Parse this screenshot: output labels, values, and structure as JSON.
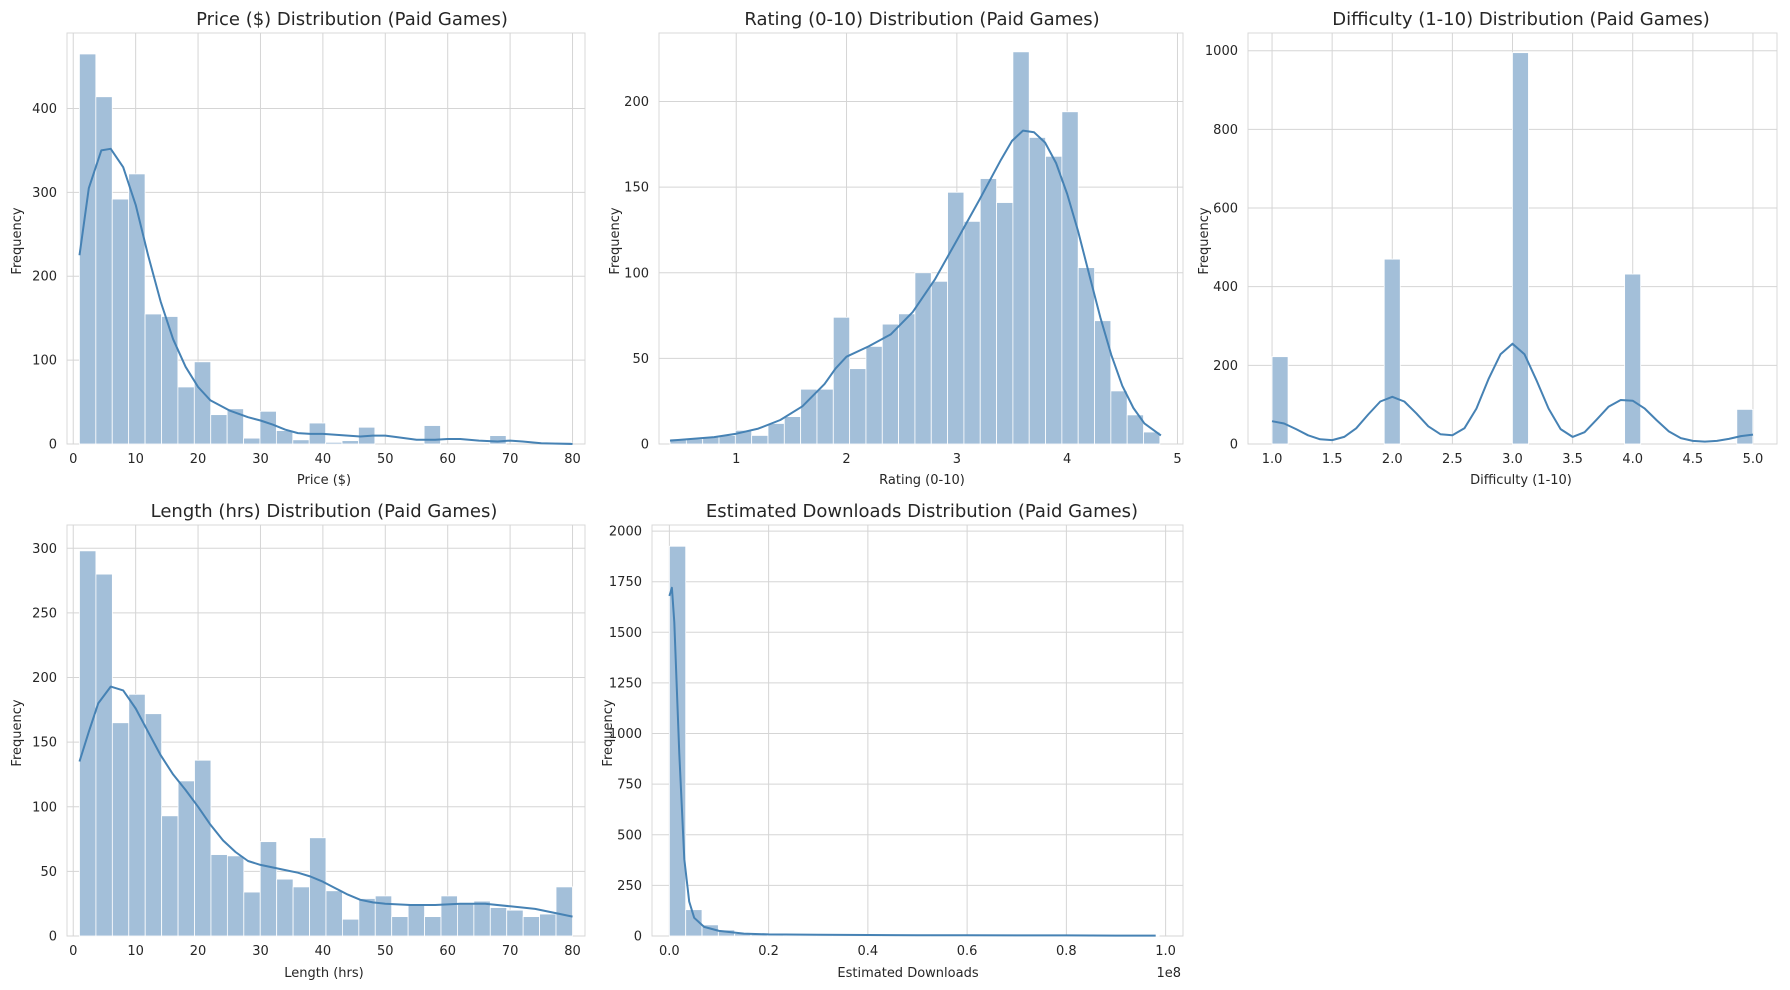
{
  "colors": {
    "bar": "#a3bfd9",
    "bar_edge": "#ffffff",
    "kde": "#4682b4",
    "grid": "#d5d5d5",
    "frame": "#d9d9d9"
  },
  "chart_data": [
    {
      "type": "bar",
      "title": "Price ($) Distribution (Paid Games)",
      "xlabel": "Price ($)",
      "ylabel": "Frequency",
      "xlim": [
        -1,
        82
      ],
      "ylim": [
        0,
        490
      ],
      "xticks": [
        0,
        10,
        20,
        30,
        40,
        50,
        60,
        70,
        80
      ],
      "xtick_labels": [
        "0",
        "10",
        "20",
        "30",
        "40",
        "50",
        "60",
        "70",
        "80"
      ],
      "yticks": [
        0,
        100,
        200,
        300,
        400
      ],
      "bin_start": 0.99,
      "bin_width": 2.63,
      "values": [
        465,
        414,
        292,
        322,
        155,
        152,
        68,
        98,
        35,
        42,
        7,
        39,
        16,
        5,
        25,
        2,
        4,
        20,
        0,
        0,
        0,
        22,
        0,
        0,
        0,
        10,
        0,
        0,
        0,
        2
      ],
      "kde": [
        [
          1,
          225
        ],
        [
          2.5,
          305
        ],
        [
          4.5,
          350
        ],
        [
          6,
          352
        ],
        [
          8,
          330
        ],
        [
          10,
          285
        ],
        [
          12,
          225
        ],
        [
          14,
          170
        ],
        [
          16,
          125
        ],
        [
          18,
          92
        ],
        [
          20,
          68
        ],
        [
          22,
          52
        ],
        [
          25,
          40
        ],
        [
          28,
          32
        ],
        [
          30,
          28
        ],
        [
          32,
          23
        ],
        [
          34,
          17
        ],
        [
          36,
          13
        ],
        [
          38,
          12
        ],
        [
          40,
          12
        ],
        [
          42,
          11
        ],
        [
          44,
          10
        ],
        [
          46,
          9
        ],
        [
          48,
          10
        ],
        [
          50,
          10
        ],
        [
          52,
          8
        ],
        [
          55,
          5
        ],
        [
          58,
          5
        ],
        [
          60,
          6
        ],
        [
          62,
          6
        ],
        [
          65,
          4
        ],
        [
          68,
          3
        ],
        [
          70,
          4
        ],
        [
          72,
          3
        ],
        [
          75,
          1
        ],
        [
          80,
          0
        ]
      ]
    },
    {
      "type": "bar",
      "title": "Rating (0-10) Distribution (Paid Games)",
      "xlabel": "Rating (0-10)",
      "ylabel": "Frequency",
      "xlim": [
        0.3,
        5.05
      ],
      "ylim": [
        0,
        240
      ],
      "xticks": [
        1,
        2,
        3,
        4,
        5
      ],
      "xtick_labels": [
        "1",
        "2",
        "3",
        "4",
        "5"
      ],
      "yticks": [
        0,
        50,
        100,
        150,
        200
      ],
      "bin_start": 0.4,
      "bin_width": 0.148,
      "values": [
        3,
        3,
        4,
        5,
        8,
        5,
        12,
        16,
        32,
        32,
        74,
        44,
        57,
        70,
        76,
        100,
        95,
        147,
        130,
        155,
        141,
        229,
        179,
        168,
        194,
        103,
        72,
        31,
        17,
        7
      ],
      "kde": [
        [
          0.4,
          2
        ],
        [
          0.6,
          3
        ],
        [
          0.8,
          4
        ],
        [
          1.0,
          6
        ],
        [
          1.2,
          9
        ],
        [
          1.4,
          14
        ],
        [
          1.6,
          22
        ],
        [
          1.8,
          35
        ],
        [
          1.9,
          44
        ],
        [
          2.0,
          51
        ],
        [
          2.2,
          57
        ],
        [
          2.4,
          64
        ],
        [
          2.6,
          77
        ],
        [
          2.8,
          96
        ],
        [
          3.0,
          119
        ],
        [
          3.2,
          142
        ],
        [
          3.4,
          166
        ],
        [
          3.5,
          177
        ],
        [
          3.6,
          183
        ],
        [
          3.7,
          182
        ],
        [
          3.8,
          176
        ],
        [
          3.9,
          164
        ],
        [
          4.0,
          146
        ],
        [
          4.1,
          124
        ],
        [
          4.2,
          99
        ],
        [
          4.3,
          74
        ],
        [
          4.4,
          52
        ],
        [
          4.5,
          34
        ],
        [
          4.6,
          21
        ],
        [
          4.7,
          12
        ],
        [
          4.85,
          5
        ]
      ]
    },
    {
      "type": "bar",
      "title": "Difficulty (1-10) Distribution (Paid Games)",
      "xlabel": "Difficulty (1-10)",
      "ylabel": "Frequency",
      "xlim": [
        0.8,
        5.2
      ],
      "ylim": [
        0,
        1045
      ],
      "xticks": [
        1.0,
        1.5,
        2.0,
        2.5,
        3.0,
        3.5,
        4.0,
        4.5,
        5.0
      ],
      "xtick_labels": [
        "1.0",
        "1.5",
        "2.0",
        "2.5",
        "3.0",
        "3.5",
        "4.0",
        "4.5",
        "5.0"
      ],
      "yticks": [
        0,
        200,
        400,
        600,
        800,
        1000
      ],
      "bin_start": 1.0,
      "bin_width": 0.1333,
      "values": [
        222,
        0,
        0,
        0,
        0,
        0,
        0,
        470,
        0,
        0,
        0,
        0,
        0,
        0,
        0,
        995,
        0,
        0,
        0,
        0,
        0,
        0,
        432,
        0,
        0,
        0,
        0,
        0,
        0,
        88
      ],
      "kde": [
        [
          1.0,
          58
        ],
        [
          1.1,
          52
        ],
        [
          1.2,
          38
        ],
        [
          1.3,
          22
        ],
        [
          1.4,
          12
        ],
        [
          1.5,
          10
        ],
        [
          1.6,
          18
        ],
        [
          1.7,
          40
        ],
        [
          1.8,
          75
        ],
        [
          1.9,
          108
        ],
        [
          2.0,
          120
        ],
        [
          2.1,
          108
        ],
        [
          2.2,
          78
        ],
        [
          2.3,
          45
        ],
        [
          2.4,
          25
        ],
        [
          2.5,
          22
        ],
        [
          2.6,
          40
        ],
        [
          2.7,
          90
        ],
        [
          2.8,
          165
        ],
        [
          2.9,
          228
        ],
        [
          3.0,
          255
        ],
        [
          3.1,
          228
        ],
        [
          3.2,
          162
        ],
        [
          3.3,
          90
        ],
        [
          3.4,
          38
        ],
        [
          3.5,
          18
        ],
        [
          3.6,
          30
        ],
        [
          3.7,
          62
        ],
        [
          3.8,
          95
        ],
        [
          3.9,
          112
        ],
        [
          4.0,
          110
        ],
        [
          4.1,
          90
        ],
        [
          4.2,
          60
        ],
        [
          4.3,
          32
        ],
        [
          4.4,
          15
        ],
        [
          4.5,
          8
        ],
        [
          4.6,
          6
        ],
        [
          4.7,
          8
        ],
        [
          4.8,
          13
        ],
        [
          4.9,
          20
        ],
        [
          5.0,
          24
        ]
      ]
    },
    {
      "type": "bar",
      "title": "Length (hrs) Distribution (Paid Games)",
      "xlabel": "Length (hrs)",
      "ylabel": "Frequency",
      "xlim": [
        -1,
        82
      ],
      "ylim": [
        0,
        318
      ],
      "xticks": [
        0,
        10,
        20,
        30,
        40,
        50,
        60,
        70,
        80
      ],
      "xtick_labels": [
        "0",
        "10",
        "20",
        "30",
        "40",
        "50",
        "60",
        "70",
        "80"
      ],
      "yticks": [
        0,
        50,
        100,
        150,
        200,
        250,
        300
      ],
      "bin_start": 1.0,
      "bin_width": 2.633,
      "values": [
        298,
        280,
        165,
        187,
        172,
        93,
        120,
        136,
        63,
        62,
        34,
        73,
        44,
        38,
        76,
        35,
        13,
        29,
        31,
        15,
        25,
        15,
        31,
        25,
        27,
        22,
        20,
        15,
        17,
        38
      ],
      "kde": [
        [
          1,
          135
        ],
        [
          2.5,
          158
        ],
        [
          4,
          180
        ],
        [
          6,
          193
        ],
        [
          8,
          190
        ],
        [
          10,
          176
        ],
        [
          12,
          158
        ],
        [
          14,
          140
        ],
        [
          16,
          125
        ],
        [
          18,
          113
        ],
        [
          20,
          100
        ],
        [
          22,
          86
        ],
        [
          24,
          74
        ],
        [
          26,
          65
        ],
        [
          28,
          58
        ],
        [
          30,
          55
        ],
        [
          32,
          53
        ],
        [
          34,
          51
        ],
        [
          36,
          49
        ],
        [
          38,
          46
        ],
        [
          40,
          42
        ],
        [
          42,
          37
        ],
        [
          44,
          32
        ],
        [
          46,
          28
        ],
        [
          48,
          26
        ],
        [
          50,
          25
        ],
        [
          54,
          24
        ],
        [
          58,
          24
        ],
        [
          62,
          25
        ],
        [
          66,
          25
        ],
        [
          70,
          23
        ],
        [
          74,
          21
        ],
        [
          78,
          17
        ],
        [
          80,
          15
        ]
      ]
    },
    {
      "type": "bar",
      "title": "Estimated Downloads Distribution (Paid Games)",
      "xlabel": "Estimated Downloads",
      "ylabel": "Frequency",
      "offset_label": "1e8",
      "xlim": [
        -0.035,
        1.035
      ],
      "ylim": [
        0,
        2030
      ],
      "xticks": [
        0.0,
        0.2,
        0.4,
        0.6,
        0.8,
        1.0
      ],
      "xtick_labels": [
        "0.0",
        "0.2",
        "0.4",
        "0.6",
        "0.8",
        "1.0"
      ],
      "yticks": [
        0,
        250,
        500,
        750,
        1000,
        1250,
        1500,
        1750,
        2000
      ],
      "bin_start": 0.0,
      "bin_width": 0.0329,
      "values": [
        1925,
        130,
        55,
        30,
        12,
        8,
        6,
        4,
        3,
        3,
        2,
        2,
        2,
        1,
        1,
        1,
        1,
        1,
        1,
        1,
        1,
        1,
        1,
        1,
        1,
        1,
        1,
        1,
        1,
        1
      ],
      "kde": [
        [
          0.0,
          1680
        ],
        [
          0.005,
          1720
        ],
        [
          0.01,
          1550
        ],
        [
          0.02,
          900
        ],
        [
          0.03,
          380
        ],
        [
          0.04,
          170
        ],
        [
          0.05,
          90
        ],
        [
          0.07,
          45
        ],
        [
          0.1,
          25
        ],
        [
          0.15,
          12
        ],
        [
          0.2,
          8
        ],
        [
          0.3,
          6
        ],
        [
          0.4,
          5
        ],
        [
          0.5,
          4
        ],
        [
          0.6,
          4
        ],
        [
          0.7,
          3
        ],
        [
          0.8,
          3
        ],
        [
          0.9,
          2
        ],
        [
          0.98,
          2
        ]
      ]
    }
  ]
}
